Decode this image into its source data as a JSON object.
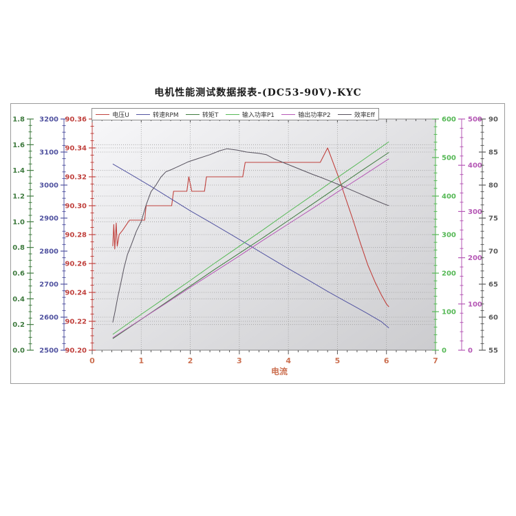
{
  "page": {
    "background": "#ffffff"
  },
  "chart_data": {
    "type": "line",
    "title": "电机性能测试数据报表-(DC53-90V)-KYC",
    "xlabel": "电流",
    "legend_position": "top-center",
    "grid": "dotted",
    "plot_bg_from": "#f7f7f9",
    "plot_bg_to": "#cccccf",
    "gridline_color": "#9b9b9b",
    "x_axis": {
      "min": 0,
      "max": 7,
      "major": 1,
      "minor_divisions": 5,
      "color": "#cc7152",
      "tick_color": "#555555",
      "tick_labels": [
        "0",
        "1",
        "2",
        "3",
        "4",
        "5",
        "6",
        "7"
      ]
    },
    "y_axes": [
      {
        "id": "torque",
        "name": "转矩T",
        "side": "left",
        "min": 0,
        "max": 1.8,
        "major": 0.2,
        "minor_divisions": 4,
        "grid": true,
        "color": "#3e7a3e",
        "tick_labels": [
          "0.0",
          "0.2",
          "0.4",
          "0.6",
          "0.8",
          "1.0",
          "1.2",
          "1.4",
          "1.6",
          "1.8"
        ]
      },
      {
        "id": "rpm",
        "name": "转速RPM",
        "side": "left",
        "min": 2500,
        "max": 3200,
        "major": 100,
        "minor_divisions": 5,
        "grid": false,
        "color": "#5153a0",
        "tick_labels": [
          "2500",
          "2600",
          "2700",
          "2800",
          "2900",
          "3000",
          "3100",
          "3200"
        ]
      },
      {
        "id": "voltage",
        "name": "电压U",
        "side": "left",
        "min": 90.2,
        "max": 90.36,
        "major": 0.02,
        "minor_divisions": 4,
        "grid": true,
        "color": "#c0413d",
        "tick_labels": [
          "90.20",
          "90.22",
          "90.24",
          "90.26",
          "90.28",
          "90.30",
          "90.32",
          "90.34",
          "90.36"
        ]
      },
      {
        "id": "p1",
        "name": "输入功率P1",
        "side": "right",
        "min": 0,
        "max": 600,
        "major": 100,
        "minor_divisions": 5,
        "grid": false,
        "color": "#55b855",
        "tick_labels": [
          "0",
          "100",
          "200",
          "300",
          "400",
          "500",
          "600"
        ]
      },
      {
        "id": "p2",
        "name": "输出功率P2",
        "side": "right",
        "min": 0,
        "max": 500,
        "major": 100,
        "minor_divisions": 5,
        "grid": false,
        "color": "#b557b5",
        "tick_labels": [
          "0",
          "100",
          "200",
          "300",
          "400",
          "500"
        ]
      },
      {
        "id": "eff",
        "name": "效率Eff",
        "side": "right",
        "min": 55,
        "max": 90,
        "major": 5,
        "minor_divisions": 5,
        "grid": true,
        "color": "#5a5a5a",
        "tick_labels": [
          "55",
          "60",
          "65",
          "70",
          "75",
          "80",
          "85",
          "90"
        ]
      }
    ],
    "series": [
      {
        "name": "电压U",
        "axis": "voltage",
        "color": "#c0413d",
        "width": 1.1,
        "points": [
          [
            0.42,
            90.272
          ],
          [
            0.44,
            90.287
          ],
          [
            0.46,
            90.27
          ],
          [
            0.49,
            90.288
          ],
          [
            0.51,
            90.272
          ],
          [
            0.55,
            90.28
          ],
          [
            0.62,
            90.283
          ],
          [
            0.7,
            90.287
          ],
          [
            0.76,
            90.29
          ],
          [
            1.07,
            90.29
          ],
          [
            1.1,
            90.3
          ],
          [
            1.62,
            90.3
          ],
          [
            1.66,
            90.31
          ],
          [
            1.93,
            90.31
          ],
          [
            1.97,
            90.32
          ],
          [
            2.03,
            90.31
          ],
          [
            2.29,
            90.31
          ],
          [
            2.33,
            90.32
          ],
          [
            3.07,
            90.32
          ],
          [
            3.12,
            90.33
          ],
          [
            4.65,
            90.33
          ],
          [
            4.8,
            90.34
          ],
          [
            4.9,
            90.331
          ],
          [
            5.02,
            90.32
          ],
          [
            5.17,
            90.305
          ],
          [
            5.32,
            90.29
          ],
          [
            5.47,
            90.274
          ],
          [
            5.62,
            90.259
          ],
          [
            5.77,
            90.247
          ],
          [
            5.9,
            90.238
          ],
          [
            6.0,
            90.232
          ],
          [
            6.05,
            90.23
          ]
        ]
      },
      {
        "name": "转速RPM",
        "axis": "rpm",
        "color": "#5153a0",
        "width": 1,
        "points": [
          [
            0.42,
            3064
          ],
          [
            0.8,
            3031
          ],
          [
            1.2,
            2996
          ],
          [
            1.6,
            2959
          ],
          [
            2.0,
            2922
          ],
          [
            2.4,
            2888
          ],
          [
            2.8,
            2853
          ],
          [
            3.2,
            2818
          ],
          [
            3.6,
            2782
          ],
          [
            4.0,
            2747
          ],
          [
            4.4,
            2713
          ],
          [
            4.8,
            2678
          ],
          [
            5.2,
            2645
          ],
          [
            5.6,
            2612
          ],
          [
            5.9,
            2586
          ],
          [
            6.05,
            2567
          ]
        ]
      },
      {
        "name": "转矩T",
        "axis": "torque",
        "color": "#3e7a3e",
        "width": 1,
        "points": [
          [
            0.42,
            0.09
          ],
          [
            1.0,
            0.24
          ],
          [
            1.5,
            0.37
          ],
          [
            2.0,
            0.5
          ],
          [
            2.5,
            0.63
          ],
          [
            3.0,
            0.755
          ],
          [
            3.5,
            0.88
          ],
          [
            4.0,
            1.01
          ],
          [
            4.5,
            1.14
          ],
          [
            5.0,
            1.27
          ],
          [
            5.5,
            1.4
          ],
          [
            6.05,
            1.54
          ]
        ]
      },
      {
        "name": "输入功率P1",
        "axis": "p1",
        "color": "#55b855",
        "width": 1,
        "points": [
          [
            0.42,
            41
          ],
          [
            1.0,
            93
          ],
          [
            1.5,
            137
          ],
          [
            2.0,
            181
          ],
          [
            2.5,
            226
          ],
          [
            3.0,
            270
          ],
          [
            3.5,
            314
          ],
          [
            4.0,
            359
          ],
          [
            4.5,
            403
          ],
          [
            5.0,
            448
          ],
          [
            5.5,
            492
          ],
          [
            6.05,
            541
          ]
        ]
      },
      {
        "name": "输出功率P2",
        "axis": "p2",
        "color": "#b557b5",
        "width": 1,
        "points": [
          [
            0.42,
            27
          ],
          [
            1.0,
            67
          ],
          [
            1.5,
            101
          ],
          [
            2.0,
            136
          ],
          [
            2.5,
            170
          ],
          [
            3.0,
            204
          ],
          [
            3.5,
            239
          ],
          [
            4.0,
            273
          ],
          [
            4.5,
            307
          ],
          [
            5.0,
            342
          ],
          [
            5.5,
            376
          ],
          [
            6.05,
            414
          ]
        ]
      },
      {
        "name": "效率Eff",
        "axis": "eff",
        "color": "#55505c",
        "width": 1,
        "points": [
          [
            0.42,
            59.2
          ],
          [
            0.47,
            61.0
          ],
          [
            0.52,
            63.0
          ],
          [
            0.58,
            65.0
          ],
          [
            0.65,
            67.5
          ],
          [
            0.72,
            69.5
          ],
          [
            0.8,
            71.0
          ],
          [
            0.9,
            73.0
          ],
          [
            1.0,
            74.5
          ],
          [
            1.1,
            77.0
          ],
          [
            1.2,
            79.0
          ],
          [
            1.3,
            80.0
          ],
          [
            1.4,
            81.2
          ],
          [
            1.5,
            82.0
          ],
          [
            1.6,
            82.3
          ],
          [
            1.75,
            82.8
          ],
          [
            1.95,
            83.5
          ],
          [
            2.15,
            84.0
          ],
          [
            2.4,
            84.6
          ],
          [
            2.6,
            85.2
          ],
          [
            2.75,
            85.5
          ],
          [
            2.95,
            85.3
          ],
          [
            3.15,
            85.0
          ],
          [
            3.4,
            84.8
          ],
          [
            3.55,
            84.6
          ],
          [
            3.7,
            84.0
          ],
          [
            3.9,
            83.4
          ],
          [
            4.1,
            82.8
          ],
          [
            4.3,
            82.2
          ],
          [
            4.5,
            81.6
          ],
          [
            4.65,
            81.2
          ],
          [
            4.85,
            80.6
          ],
          [
            5.05,
            80.0
          ],
          [
            5.3,
            79.2
          ],
          [
            5.55,
            78.4
          ],
          [
            5.8,
            77.6
          ],
          [
            6.0,
            77.0
          ],
          [
            6.05,
            76.9
          ]
        ]
      }
    ]
  }
}
